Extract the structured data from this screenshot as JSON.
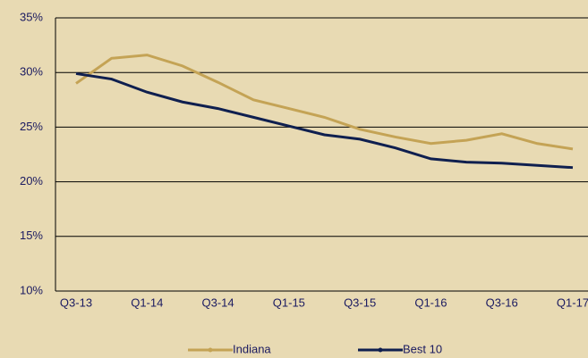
{
  "chart_data": {
    "type": "line",
    "categories": [
      "Q3-13",
      null,
      "Q1-14",
      null,
      "Q3-14",
      null,
      "Q1-15",
      null,
      "Q3-15",
      null,
      "Q1-16",
      null,
      "Q3-16",
      null,
      "Q1-17"
    ],
    "series": [
      {
        "name": "Indiana",
        "color": "#c4a355",
        "values": [
          29.0,
          31.3,
          31.6,
          30.6,
          29.1,
          27.5,
          26.7,
          25.9,
          24.8,
          24.1,
          23.5,
          23.8,
          24.4,
          23.5,
          23.0
        ]
      },
      {
        "name": "Best 10",
        "color": "#0f1f4f",
        "values": [
          29.9,
          29.4,
          28.2,
          27.3,
          26.7,
          25.9,
          25.1,
          24.3,
          23.9,
          23.1,
          22.1,
          21.8,
          21.7,
          21.5,
          21.3
        ]
      }
    ],
    "ylim": [
      10,
      35
    ],
    "yticks": [
      {
        "value": 10,
        "label": "10%"
      },
      {
        "value": 15,
        "label": "15%"
      },
      {
        "value": 20,
        "label": "20%"
      },
      {
        "value": 25,
        "label": "25%"
      },
      {
        "value": 30,
        "label": "30%"
      },
      {
        "value": 35,
        "label": "35%"
      }
    ],
    "grid": true,
    "legend": "bottom"
  }
}
